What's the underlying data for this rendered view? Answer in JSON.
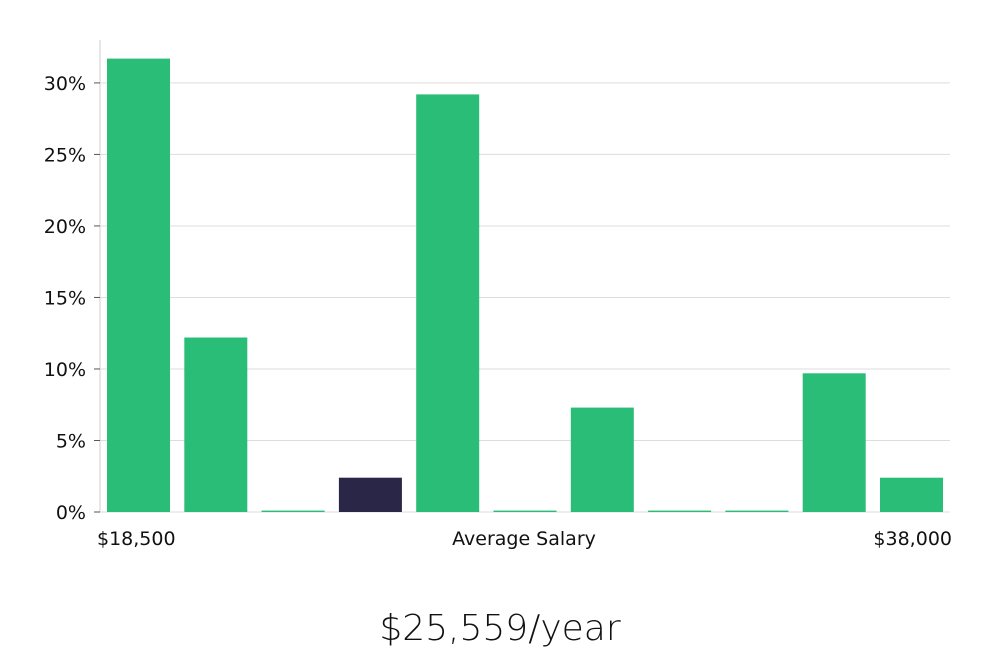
{
  "chart_data": {
    "type": "bar",
    "categories": [
      "1",
      "2",
      "3",
      "4",
      "5",
      "6",
      "7",
      "8",
      "9",
      "10",
      "11"
    ],
    "values": [
      31.7,
      12.2,
      0.1,
      2.4,
      29.2,
      0.1,
      7.3,
      0.1,
      0.1,
      9.7,
      2.4
    ],
    "highlight_index": 3,
    "ylim": [
      0,
      33
    ],
    "y_ticks": [
      0,
      5,
      10,
      15,
      20,
      25,
      30
    ],
    "y_tick_labels": [
      "0%",
      "5%",
      "10%",
      "15%",
      "20%",
      "25%",
      "30%"
    ],
    "grid": true,
    "x_min_label": "$18,500",
    "x_center_label": "Average Salary",
    "x_max_label": "$38,000",
    "colors": {
      "bar": "#2abd77",
      "highlight": "#2a2647",
      "grid": "#dddddd",
      "axis": "#cccccc"
    }
  },
  "summary": {
    "salary_value": "$25,559/year"
  }
}
